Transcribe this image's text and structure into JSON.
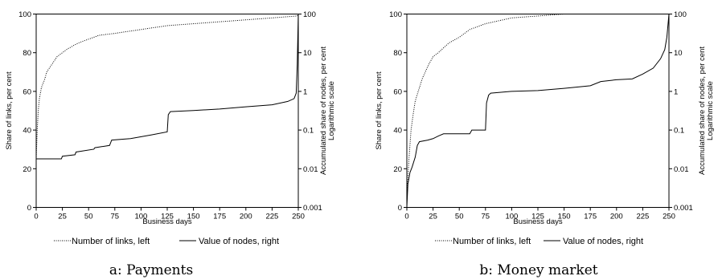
{
  "chart_data": [
    {
      "type": "line",
      "caption": "a: Payments",
      "xlabel": "Business days",
      "ylabel_left": "Share of links, per cent",
      "ylabel_right": [
        "Accumulated share of nodes, per cent",
        "Logarithmic scale"
      ],
      "xlim": [
        0,
        250
      ],
      "ylim_left": [
        0,
        100
      ],
      "ylim_right": [
        0.001,
        100
      ],
      "yscale_right": "log",
      "x_ticks": [
        "0",
        "25",
        "50",
        "75",
        "100",
        "125",
        "150",
        "175",
        "200",
        "225",
        "250"
      ],
      "y_ticks_left": [
        "0",
        "20",
        "40",
        "60",
        "80",
        "100"
      ],
      "y_ticks_right": [
        "0.001",
        "0.01",
        "0.1",
        "1",
        "10",
        "100"
      ],
      "legend": "bottom",
      "series": [
        {
          "name": "Number of links, left",
          "axis": "left",
          "style": "dotted",
          "points": [
            [
              0,
              25
            ],
            [
              1,
              40
            ],
            [
              2,
              50
            ],
            [
              3,
              56
            ],
            [
              5,
              62
            ],
            [
              8,
              66
            ],
            [
              10,
              70
            ],
            [
              15,
              74
            ],
            [
              20,
              78
            ],
            [
              25,
              80
            ],
            [
              30,
              82
            ],
            [
              40,
              85
            ],
            [
              50,
              87
            ],
            [
              60,
              89
            ],
            [
              75,
              90
            ],
            [
              100,
              92
            ],
            [
              125,
              94
            ],
            [
              150,
              95
            ],
            [
              175,
              96
            ],
            [
              200,
              97
            ],
            [
              225,
              98
            ],
            [
              249,
              99
            ],
            [
              250,
              100
            ]
          ]
        },
        {
          "name": "Value of nodes, right",
          "axis": "right",
          "style": "solid",
          "points": [
            [
              0,
              0.018
            ],
            [
              24,
              0.018
            ],
            [
              25,
              0.021
            ],
            [
              37,
              0.023
            ],
            [
              38,
              0.027
            ],
            [
              55,
              0.032
            ],
            [
              56,
              0.035
            ],
            [
              70,
              0.04
            ],
            [
              72,
              0.055
            ],
            [
              90,
              0.06
            ],
            [
              110,
              0.075
            ],
            [
              125,
              0.09
            ],
            [
              126,
              0.25
            ],
            [
              128,
              0.3
            ],
            [
              150,
              0.32
            ],
            [
              175,
              0.35
            ],
            [
              200,
              0.4
            ],
            [
              225,
              0.45
            ],
            [
              240,
              0.55
            ],
            [
              246,
              0.65
            ],
            [
              248,
              0.9
            ],
            [
              249,
              5
            ],
            [
              250,
              100
            ]
          ]
        }
      ]
    },
    {
      "type": "line",
      "caption": "b: Money market",
      "xlabel": "Business days",
      "ylabel_left": "Share of links, per cent",
      "ylabel_right": [
        "Accumulated share of nodes, per cent",
        "Logarithmic scale"
      ],
      "xlim": [
        0,
        250
      ],
      "ylim_left": [
        0,
        100
      ],
      "ylim_right": [
        0.001,
        100
      ],
      "yscale_right": "log",
      "x_ticks": [
        "0",
        "25",
        "50",
        "75",
        "100",
        "125",
        "150",
        "175",
        "200",
        "225",
        "250"
      ],
      "y_ticks_left": [
        "0",
        "20",
        "40",
        "60",
        "80",
        "100"
      ],
      "y_ticks_right": [
        "0.001",
        "0.01",
        "0.1",
        "1",
        "10",
        "100"
      ],
      "legend": "bottom",
      "series": [
        {
          "name": "Number of links, left",
          "axis": "left",
          "style": "dotted",
          "points": [
            [
              0,
              5
            ],
            [
              2,
              25
            ],
            [
              4,
              40
            ],
            [
              6,
              48
            ],
            [
              8,
              55
            ],
            [
              12,
              62
            ],
            [
              15,
              67
            ],
            [
              20,
              73
            ],
            [
              25,
              78
            ],
            [
              30,
              80
            ],
            [
              40,
              85
            ],
            [
              50,
              88
            ],
            [
              60,
              92
            ],
            [
              75,
              95
            ],
            [
              100,
              98
            ],
            [
              125,
              99
            ],
            [
              150,
              100
            ],
            [
              250,
              100
            ]
          ]
        },
        {
          "name": "Value of nodes, right",
          "axis": "right",
          "style": "solid",
          "points": [
            [
              0,
              0.001
            ],
            [
              1,
              0.004
            ],
            [
              3,
              0.008
            ],
            [
              5,
              0.011
            ],
            [
              8,
              0.02
            ],
            [
              10,
              0.04
            ],
            [
              12,
              0.05
            ],
            [
              20,
              0.055
            ],
            [
              25,
              0.06
            ],
            [
              30,
              0.07
            ],
            [
              35,
              0.08
            ],
            [
              60,
              0.08
            ],
            [
              62,
              0.1
            ],
            [
              75,
              0.1
            ],
            [
              76,
              0.5
            ],
            [
              78,
              0.8
            ],
            [
              80,
              0.9
            ],
            [
              100,
              1.0
            ],
            [
              125,
              1.05
            ],
            [
              150,
              1.2
            ],
            [
              175,
              1.4
            ],
            [
              185,
              1.8
            ],
            [
              200,
              2.0
            ],
            [
              215,
              2.1
            ],
            [
              225,
              2.8
            ],
            [
              235,
              4
            ],
            [
              242,
              7
            ],
            [
              246,
              12
            ],
            [
              248,
              25
            ],
            [
              250,
              100
            ]
          ]
        }
      ]
    }
  ]
}
